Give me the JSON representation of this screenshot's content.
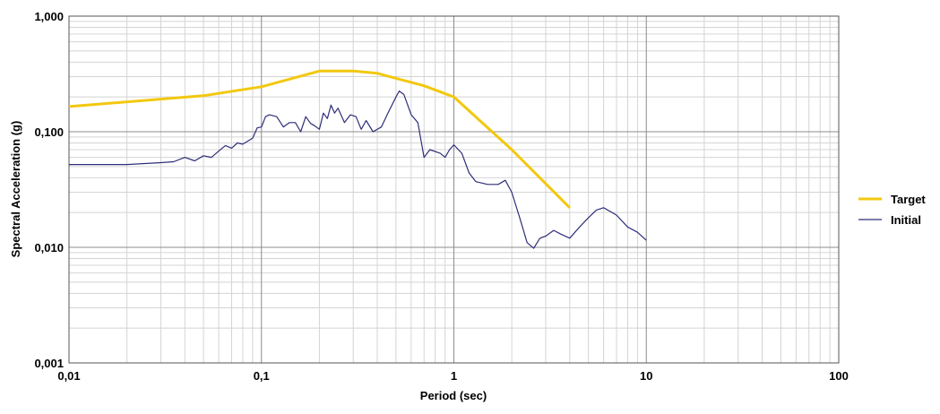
{
  "chart_data": {
    "type": "line",
    "xlabel": "Period (sec)",
    "ylabel": "Spectral Acceleration (g)",
    "xscale": "log",
    "yscale": "log",
    "xlim": [
      0.01,
      100
    ],
    "ylim": [
      0.001,
      1
    ],
    "xticks": [
      {
        "value": 0.01,
        "label": "0,01"
      },
      {
        "value": 0.1,
        "label": "0,1"
      },
      {
        "value": 1,
        "label": "1"
      },
      {
        "value": 10,
        "label": "10"
      },
      {
        "value": 100,
        "label": "100"
      }
    ],
    "yticks": [
      {
        "value": 0.001,
        "label": "0,001"
      },
      {
        "value": 0.01,
        "label": "0,010"
      },
      {
        "value": 0.1,
        "label": "0,100"
      },
      {
        "value": 1,
        "label": "1,000"
      }
    ],
    "grid": true,
    "legend_position": "right",
    "series": [
      {
        "name": "Target",
        "color": "#f2c80f",
        "points": [
          [
            0.01,
            0.165
          ],
          [
            0.05,
            0.205
          ],
          [
            0.1,
            0.245
          ],
          [
            0.2,
            0.335
          ],
          [
            0.3,
            0.335
          ],
          [
            0.4,
            0.32
          ],
          [
            0.5,
            0.29
          ],
          [
            0.7,
            0.25
          ],
          [
            1.0,
            0.2
          ],
          [
            2.0,
            0.07
          ],
          [
            4.0,
            0.022
          ]
        ]
      },
      {
        "name": "Initial",
        "color": "#2e2e7a",
        "points": [
          [
            0.01,
            0.052
          ],
          [
            0.02,
            0.052
          ],
          [
            0.03,
            0.054
          ],
          [
            0.035,
            0.055
          ],
          [
            0.04,
            0.06
          ],
          [
            0.045,
            0.056
          ],
          [
            0.05,
            0.062
          ],
          [
            0.055,
            0.06
          ],
          [
            0.06,
            0.068
          ],
          [
            0.065,
            0.076
          ],
          [
            0.07,
            0.072
          ],
          [
            0.075,
            0.08
          ],
          [
            0.08,
            0.078
          ],
          [
            0.09,
            0.088
          ],
          [
            0.095,
            0.108
          ],
          [
            0.1,
            0.11
          ],
          [
            0.105,
            0.135
          ],
          [
            0.11,
            0.14
          ],
          [
            0.12,
            0.135
          ],
          [
            0.13,
            0.11
          ],
          [
            0.14,
            0.12
          ],
          [
            0.15,
            0.12
          ],
          [
            0.16,
            0.1
          ],
          [
            0.17,
            0.135
          ],
          [
            0.18,
            0.118
          ],
          [
            0.19,
            0.112
          ],
          [
            0.2,
            0.105
          ],
          [
            0.21,
            0.145
          ],
          [
            0.22,
            0.13
          ],
          [
            0.23,
            0.17
          ],
          [
            0.24,
            0.145
          ],
          [
            0.25,
            0.16
          ],
          [
            0.27,
            0.12
          ],
          [
            0.29,
            0.14
          ],
          [
            0.31,
            0.135
          ],
          [
            0.33,
            0.105
          ],
          [
            0.35,
            0.125
          ],
          [
            0.38,
            0.1
          ],
          [
            0.42,
            0.11
          ],
          [
            0.45,
            0.14
          ],
          [
            0.5,
            0.2
          ],
          [
            0.52,
            0.225
          ],
          [
            0.55,
            0.21
          ],
          [
            0.6,
            0.14
          ],
          [
            0.65,
            0.12
          ],
          [
            0.7,
            0.06
          ],
          [
            0.75,
            0.07
          ],
          [
            0.85,
            0.065
          ],
          [
            0.9,
            0.06
          ],
          [
            0.95,
            0.07
          ],
          [
            1.0,
            0.077
          ],
          [
            1.1,
            0.065
          ],
          [
            1.2,
            0.044
          ],
          [
            1.3,
            0.037
          ],
          [
            1.5,
            0.035
          ],
          [
            1.7,
            0.035
          ],
          [
            1.85,
            0.038
          ],
          [
            2.0,
            0.03
          ],
          [
            2.2,
            0.018
          ],
          [
            2.4,
            0.011
          ],
          [
            2.6,
            0.0098
          ],
          [
            2.8,
            0.012
          ],
          [
            3.0,
            0.0125
          ],
          [
            3.3,
            0.014
          ],
          [
            3.6,
            0.013
          ],
          [
            4.0,
            0.012
          ],
          [
            4.5,
            0.015
          ],
          [
            5.0,
            0.018
          ],
          [
            5.5,
            0.021
          ],
          [
            6.0,
            0.022
          ],
          [
            7.0,
            0.019
          ],
          [
            8.0,
            0.015
          ],
          [
            9.0,
            0.0135
          ],
          [
            10.0,
            0.0115
          ]
        ]
      }
    ]
  }
}
